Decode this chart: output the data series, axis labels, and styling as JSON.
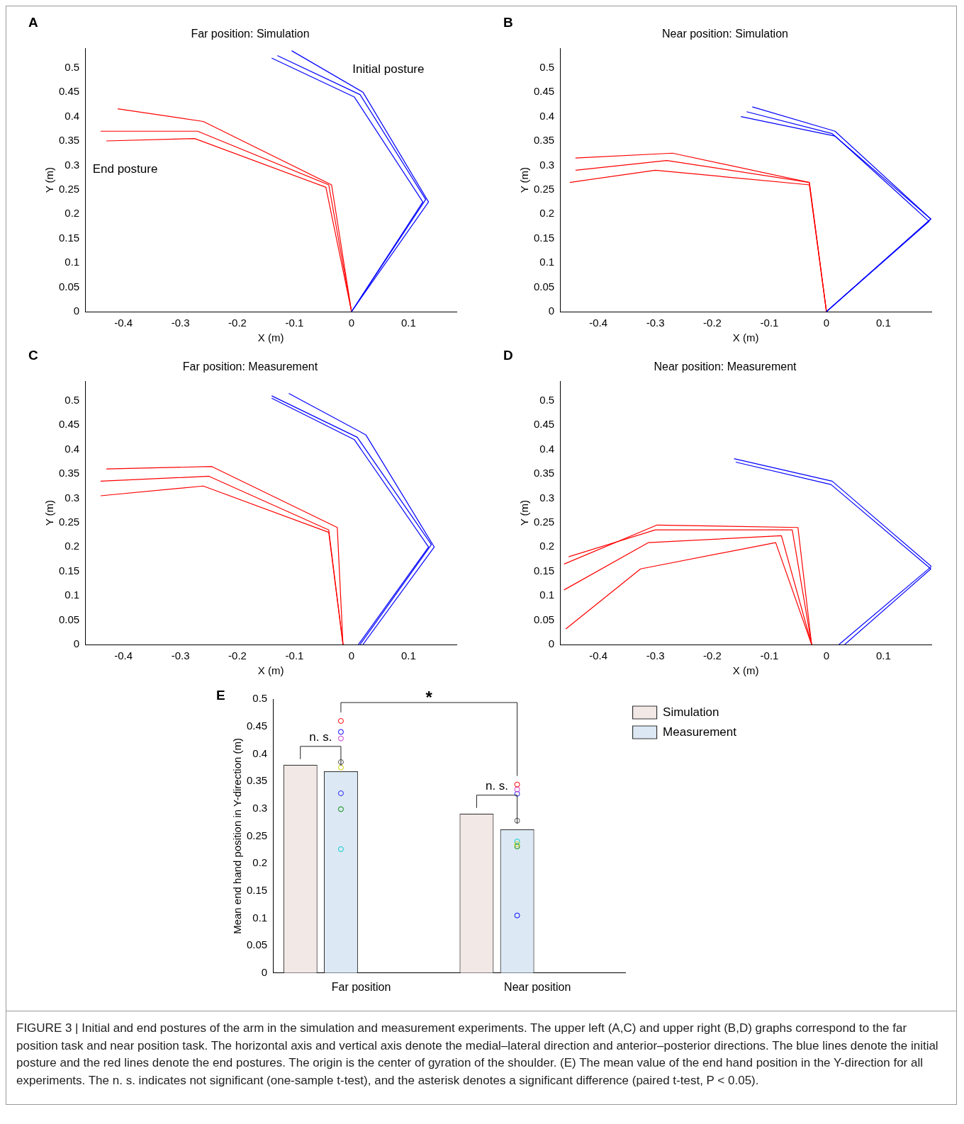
{
  "chart_data": [
    {
      "type": "line",
      "title": "Far position: Simulation",
      "xlabel": "X (m)",
      "ylabel": "Y (m)",
      "xlim": [
        -0.467,
        0.184
      ],
      "xticks": [
        -0.4,
        -0.3,
        -0.2,
        -0.1,
        0,
        0.1
      ],
      "ylim": [
        0,
        0.54
      ],
      "yticks": [
        0,
        0.05,
        0.1,
        0.15,
        0.2,
        0.25,
        0.3,
        0.35,
        0.4,
        0.45,
        0.5
      ],
      "marker": "none",
      "grid": false,
      "legend": false,
      "annotations": [
        "A",
        "Initial posture",
        "End posture"
      ],
      "series": [
        {
          "color": "#0000ff",
          "x": [
            0,
            0.13,
            0.015,
            -0.13
          ],
          "values": [
            0,
            0.23,
            0.445,
            0.525
          ]
        },
        {
          "color": "#0000ff",
          "x": [
            0,
            0.135,
            0.02,
            -0.105
          ],
          "values": [
            0,
            0.225,
            0.45,
            0.535
          ]
        },
        {
          "color": "#0000ff",
          "x": [
            0,
            0.125,
            0.005,
            -0.14
          ],
          "values": [
            0,
            0.225,
            0.44,
            0.52
          ]
        },
        {
          "color": "#ff0000",
          "x": [
            0,
            -0.035,
            -0.26,
            -0.41
          ],
          "values": [
            0,
            0.26,
            0.39,
            0.416
          ]
        },
        {
          "color": "#ff0000",
          "x": [
            0,
            -0.04,
            -0.27,
            -0.44
          ],
          "values": [
            0,
            0.26,
            0.37,
            0.37
          ]
        },
        {
          "color": "#ff0000",
          "x": [
            0,
            -0.045,
            -0.275,
            -0.43
          ],
          "values": [
            0,
            0.255,
            0.355,
            0.35
          ]
        }
      ]
    },
    {
      "type": "line",
      "title": "Near position: Simulation",
      "xlabel": "X (m)",
      "ylabel": "Y (m)",
      "xlim": [
        -0.467,
        0.184
      ],
      "xticks": [
        -0.4,
        -0.3,
        -0.2,
        -0.1,
        0,
        0.1
      ],
      "ylim": [
        0,
        0.54
      ],
      "yticks": [
        0,
        0.05,
        0.1,
        0.15,
        0.2,
        0.25,
        0.3,
        0.35,
        0.4,
        0.45,
        0.5
      ],
      "marker": "none",
      "grid": false,
      "legend": false,
      "annotations": [
        "B"
      ],
      "series": [
        {
          "color": "#0000ff",
          "x": [
            0,
            0.183,
            0.01,
            -0.14
          ],
          "values": [
            0,
            0.19,
            0.365,
            0.41
          ]
        },
        {
          "color": "#0000ff",
          "x": [
            0,
            0.18,
            0.015,
            -0.15
          ],
          "values": [
            0,
            0.185,
            0.36,
            0.4
          ]
        },
        {
          "color": "#0000ff",
          "x": [
            0,
            0.183,
            0.015,
            -0.13
          ],
          "values": [
            0,
            0.19,
            0.37,
            0.42
          ]
        },
        {
          "color": "#ff0000",
          "x": [
            0,
            -0.03,
            -0.27,
            -0.44
          ],
          "values": [
            0,
            0.265,
            0.325,
            0.315
          ]
        },
        {
          "color": "#ff0000",
          "x": [
            0,
            -0.03,
            -0.28,
            -0.44
          ],
          "values": [
            0,
            0.265,
            0.31,
            0.29
          ]
        },
        {
          "color": "#ff0000",
          "x": [
            0,
            -0.03,
            -0.3,
            -0.45
          ],
          "values": [
            0,
            0.26,
            0.29,
            0.265
          ]
        }
      ]
    },
    {
      "type": "line",
      "title": "Far position: Measurement",
      "xlabel": "X (m)",
      "ylabel": "Y (m)",
      "xlim": [
        -0.467,
        0.184
      ],
      "xticks": [
        -0.4,
        -0.3,
        -0.2,
        -0.1,
        0,
        0.1
      ],
      "ylim": [
        0,
        0.54
      ],
      "yticks": [
        0,
        0.05,
        0.1,
        0.15,
        0.2,
        0.25,
        0.3,
        0.35,
        0.4,
        0.45,
        0.5
      ],
      "marker": "none",
      "grid": false,
      "legend": false,
      "annotations": [
        "C"
      ],
      "series": [
        {
          "color": "#0000ff",
          "x": [
            0.015,
            0.14,
            0.01,
            -0.14
          ],
          "values": [
            0,
            0.205,
            0.425,
            0.51
          ]
        },
        {
          "color": "#0000ff",
          "x": [
            0.02,
            0.145,
            0.025,
            -0.11
          ],
          "values": [
            0,
            0.2,
            0.43,
            0.515
          ]
        },
        {
          "color": "#0000ff",
          "x": [
            0.012,
            0.135,
            0.005,
            -0.14
          ],
          "values": [
            0,
            0.2,
            0.42,
            0.505
          ]
        },
        {
          "color": "#ff0000",
          "x": [
            -0.015,
            -0.04,
            -0.25,
            -0.44
          ],
          "values": [
            0,
            0.235,
            0.345,
            0.335
          ]
        },
        {
          "color": "#ff0000",
          "x": [
            -0.015,
            -0.025,
            -0.245,
            -0.43
          ],
          "values": [
            0,
            0.24,
            0.365,
            0.36
          ]
        },
        {
          "color": "#ff0000",
          "x": [
            -0.015,
            -0.04,
            -0.26,
            -0.44
          ],
          "values": [
            0,
            0.23,
            0.325,
            0.305
          ]
        }
      ]
    },
    {
      "type": "line",
      "title": "Near position: Measurement",
      "xlabel": "X (m)",
      "ylabel": "Y (m)",
      "xlim": [
        -0.467,
        0.184
      ],
      "xticks": [
        -0.4,
        -0.3,
        -0.2,
        -0.1,
        0,
        0.1
      ],
      "ylim": [
        0,
        0.54
      ],
      "yticks": [
        0,
        0.05,
        0.1,
        0.15,
        0.2,
        0.25,
        0.3,
        0.35,
        0.4,
        0.45,
        0.5
      ],
      "marker": "none",
      "grid": false,
      "legend": false,
      "annotations": [
        "D"
      ],
      "series": [
        {
          "color": "#0000ff",
          "x": [
            0.022,
            0.184,
            0.01,
            -0.162
          ],
          "values": [
            0,
            0.16,
            0.335,
            0.381
          ]
        },
        {
          "color": "#0000ff",
          "x": [
            0.032,
            0.183,
            0.008,
            -0.159
          ],
          "values": [
            0,
            0.155,
            0.328,
            0.374
          ]
        },
        {
          "color": "#ff0000",
          "x": [
            -0.026,
            -0.05,
            -0.297,
            -0.46
          ],
          "values": [
            0,
            0.24,
            0.245,
            0.165
          ]
        },
        {
          "color": "#ff0000",
          "x": [
            -0.026,
            -0.06,
            -0.3,
            -0.452
          ],
          "values": [
            0,
            0.235,
            0.235,
            0.18
          ]
        },
        {
          "color": "#ff0000",
          "x": [
            -0.026,
            -0.079,
            -0.312,
            -0.46
          ],
          "values": [
            0,
            0.223,
            0.209,
            0.112
          ]
        },
        {
          "color": "#ff0000",
          "x": [
            -0.026,
            -0.089,
            -0.326,
            -0.457
          ],
          "values": [
            0,
            0.209,
            0.155,
            0.032
          ]
        }
      ]
    },
    {
      "type": "bar",
      "categories": [
        "Far position",
        "Near position"
      ],
      "ylabel": "Mean end hand position in Y-direction (m)",
      "ylim": [
        0,
        0.5
      ],
      "yticks": [
        0,
        0.05,
        0.1,
        0.15,
        0.2,
        0.25,
        0.3,
        0.35,
        0.4,
        0.45,
        0.5
      ],
      "grid": false,
      "legend": "top right",
      "marker": "circle",
      "annotations": [
        "E",
        "n. s.",
        "n. s.",
        "*",
        "FIGURE 3 | Initial and end postures of the arm in the simulation and measurement experiments. The upper left (A,C) and upper right (B,D) graphs correspond to the far position task and near position task. The horizontal axis and vertical axis denote the medial–lateral direction and anterior–posterior directions. The blue lines denote the initial posture and the red lines denote the end postures. The origin is the center of gyration of the shoulder. (E) The mean value of the end hand position in the Y-direction for all experiments. The n. s. indicates not significant (one-sample t-test), and the asterisk denotes a significant difference (paired t-test, P < 0.05)."
      ],
      "series": [
        {
          "name": "Simulation",
          "color": "#f2e8e6",
          "values": [
            0.38,
            0.291
          ]
        },
        {
          "name": "Measurement",
          "color": "#dce9f5",
          "values": [
            0.368,
            0.262
          ]
        },
        {
          "type": "scatter",
          "color": "#ff0000",
          "x": [
            "Far position",
            "Near position"
          ],
          "values": [
            0.46,
            0.344
          ]
        },
        {
          "type": "scatter",
          "color": "#0000ff",
          "x": [
            "Far position",
            "Near position"
          ],
          "values": [
            0.44,
            0.105
          ]
        },
        {
          "type": "scatter",
          "color": "#cc33cc",
          "x": [
            "Far position",
            "Near position"
          ],
          "values": [
            0.428,
            0.335
          ]
        },
        {
          "type": "scatter",
          "color": "#555555",
          "x": [
            "Far position",
            "Near position"
          ],
          "values": [
            0.385,
            0.278
          ]
        },
        {
          "type": "scatter",
          "color": "#cccc00",
          "x": [
            "Far position",
            "Near position"
          ],
          "values": [
            0.375,
            0.235
          ]
        },
        {
          "type": "scatter",
          "color": "#2222ff",
          "x": [
            "Far position",
            "Near position"
          ],
          "values": [
            0.328,
            0.327
          ]
        },
        {
          "type": "scatter",
          "color": "#008800",
          "x": [
            "Far position",
            "Near position"
          ],
          "values": [
            0.299,
            0.231
          ]
        },
        {
          "type": "scatter",
          "color": "#00cccc",
          "x": [
            "Far position",
            "Near position"
          ],
          "values": [
            0.226,
            0.24
          ]
        }
      ]
    }
  ]
}
